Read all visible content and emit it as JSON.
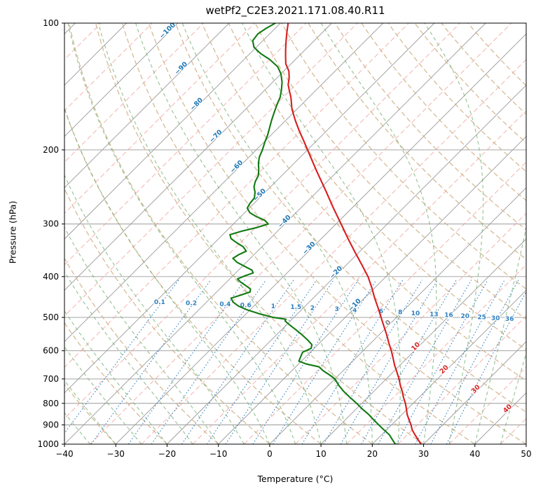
{
  "chart_data": {
    "type": "line",
    "subtype": "skewT-logP",
    "title": "wetPf2_C2E3.2021.171.08.40.R11",
    "xlabel": "Temperature (°C)",
    "ylabel": "Pressure (hPa)",
    "x_range": [
      -40,
      50
    ],
    "p_range": [
      100,
      1000
    ],
    "x_ticks": [
      -40,
      -30,
      -20,
      -10,
      0,
      10,
      20,
      30,
      40,
      50
    ],
    "y_ticks": [
      100,
      200,
      300,
      400,
      500,
      600,
      700,
      800,
      900,
      1000
    ],
    "skew_deg_per_decade": 82.1,
    "grid": true,
    "colors": {
      "temperature": "#d81e1e",
      "dewpoint": "#127a12",
      "isotherm": "#9a9a9a",
      "isotherm_minor": "#ee9a93",
      "dry_adiabat": "#d2b48c",
      "moist_adiabat": "#6fae6f",
      "mixing_line": "#2f7fbf",
      "label_negative": "#1f77b4",
      "label_zero": "#808080",
      "label_positive": "#d62728",
      "frame": "#000000"
    },
    "isotherm_step": 10,
    "isotherm_minor_step": 10,
    "dry_adiabats": {
      "start": -30,
      "end": 170,
      "step": 10
    },
    "moist_adiabats": {
      "start": -40,
      "end": 45,
      "step": 5
    },
    "mixing_ratios": [
      0.1,
      0.2,
      0.4,
      0.6,
      1,
      1.5,
      2,
      3,
      4,
      6,
      8,
      10,
      13,
      16,
      20,
      25,
      30,
      36
    ],
    "mixing_label_pressure_start": 468,
    "mixing_label_pressure_step": 2.7,
    "isotherm_labels": [
      {
        "t": -100,
        "p": 105
      },
      {
        "t": -90,
        "p": 129
      },
      {
        "t": -80,
        "p": 157
      },
      {
        "t": -70,
        "p": 187
      },
      {
        "t": -60,
        "p": 221
      },
      {
        "t": -50,
        "p": 258
      },
      {
        "t": -40,
        "p": 298
      },
      {
        "t": -30,
        "p": 345
      },
      {
        "t": -20,
        "p": 394
      },
      {
        "t": -10,
        "p": 471
      },
      {
        "t": 0,
        "p": 519
      },
      {
        "t": 10,
        "p": 591
      },
      {
        "t": 20,
        "p": 670
      },
      {
        "t": 30,
        "p": 746
      },
      {
        "t": 40,
        "p": 830
      }
    ],
    "series": [
      {
        "name": "temperature",
        "units": [
          "hPa",
          "degC"
        ],
        "points": [
          [
            1000,
            29.5
          ],
          [
            975,
            28
          ],
          [
            950,
            26.5
          ],
          [
            925,
            25
          ],
          [
            900,
            23.8
          ],
          [
            875,
            22.4
          ],
          [
            850,
            21
          ],
          [
            825,
            19.8
          ],
          [
            800,
            18.5
          ],
          [
            775,
            17
          ],
          [
            750,
            15.6
          ],
          [
            725,
            14
          ],
          [
            700,
            12.5
          ],
          [
            675,
            10.8
          ],
          [
            650,
            9
          ],
          [
            625,
            7.3
          ],
          [
            600,
            5.5
          ],
          [
            575,
            3.5
          ],
          [
            550,
            1.5
          ],
          [
            525,
            -0.7
          ],
          [
            500,
            -3
          ],
          [
            475,
            -5.4
          ],
          [
            450,
            -8
          ],
          [
            425,
            -10.6
          ],
          [
            400,
            -13.5
          ],
          [
            375,
            -17
          ],
          [
            350,
            -20.8
          ],
          [
            325,
            -24.8
          ],
          [
            300,
            -29
          ],
          [
            275,
            -33.6
          ],
          [
            250,
            -38.5
          ],
          [
            225,
            -44
          ],
          [
            200,
            -50
          ],
          [
            190,
            -52.6
          ],
          [
            180,
            -55.4
          ],
          [
            170,
            -58.2
          ],
          [
            160,
            -61
          ],
          [
            150,
            -63.5
          ],
          [
            145,
            -65
          ],
          [
            140,
            -66.5
          ],
          [
            135,
            -67.6
          ],
          [
            130,
            -69
          ],
          [
            125,
            -71
          ],
          [
            120,
            -72.5
          ],
          [
            115,
            -74
          ],
          [
            110,
            -75.5
          ],
          [
            105,
            -77
          ],
          [
            100,
            -78.5
          ]
        ]
      },
      {
        "name": "dewpoint",
        "units": [
          "hPa",
          "degC"
        ],
        "points": [
          [
            1000,
            24.5
          ],
          [
            975,
            23
          ],
          [
            950,
            21.5
          ],
          [
            925,
            19.5
          ],
          [
            900,
            17.5
          ],
          [
            875,
            15.5
          ],
          [
            850,
            13.5
          ],
          [
            825,
            11.2
          ],
          [
            800,
            9
          ],
          [
            775,
            6.6
          ],
          [
            750,
            4.2
          ],
          [
            725,
            2
          ],
          [
            700,
            0
          ],
          [
            685,
            -1.8
          ],
          [
            670,
            -3.8
          ],
          [
            655,
            -5.5
          ],
          [
            645,
            -8.5
          ],
          [
            635,
            -10.5
          ],
          [
            620,
            -11
          ],
          [
            605,
            -11.5
          ],
          [
            592,
            -10.6
          ],
          [
            580,
            -11.2
          ],
          [
            565,
            -13
          ],
          [
            550,
            -15
          ],
          [
            535,
            -17.2
          ],
          [
            520,
            -19.5
          ],
          [
            510,
            -21
          ],
          [
            505,
            -21.2
          ],
          [
            500,
            -24
          ],
          [
            490,
            -27.5
          ],
          [
            480,
            -30.5
          ],
          [
            470,
            -33
          ],
          [
            460,
            -34.8
          ],
          [
            450,
            -36
          ],
          [
            442,
            -34.6
          ],
          [
            435,
            -33.5
          ],
          [
            428,
            -34
          ],
          [
            420,
            -35.6
          ],
          [
            412,
            -37.3
          ],
          [
            405,
            -38.5
          ],
          [
            398,
            -37.6
          ],
          [
            392,
            -36.6
          ],
          [
            386,
            -37.4
          ],
          [
            378,
            -39.6
          ],
          [
            370,
            -41.8
          ],
          [
            362,
            -43.4
          ],
          [
            355,
            -43
          ],
          [
            348,
            -42.2
          ],
          [
            340,
            -43.6
          ],
          [
            332,
            -45.8
          ],
          [
            325,
            -47.6
          ],
          [
            318,
            -48.6
          ],
          [
            312,
            -47
          ],
          [
            306,
            -44.8
          ],
          [
            300,
            -43.2
          ],
          [
            294,
            -44.6
          ],
          [
            288,
            -47
          ],
          [
            282,
            -49
          ],
          [
            275,
            -50.4
          ],
          [
            268,
            -50.8
          ],
          [
            260,
            -51
          ],
          [
            252,
            -52
          ],
          [
            245,
            -53.2
          ],
          [
            238,
            -54
          ],
          [
            230,
            -54.6
          ],
          [
            222,
            -55.8
          ],
          [
            215,
            -57
          ],
          [
            208,
            -58
          ],
          [
            200,
            -58.8
          ],
          [
            192,
            -59.8
          ],
          [
            185,
            -60.6
          ],
          [
            178,
            -61.6
          ],
          [
            170,
            -62.8
          ],
          [
            163,
            -63.8
          ],
          [
            156,
            -64.8
          ],
          [
            150,
            -65.6
          ],
          [
            144,
            -66.8
          ],
          [
            138,
            -68.2
          ],
          [
            132,
            -70
          ],
          [
            127,
            -72
          ],
          [
            122,
            -75
          ],
          [
            118,
            -78
          ],
          [
            114,
            -80.5
          ],
          [
            110,
            -82
          ],
          [
            106,
            -82.3
          ],
          [
            103,
            -81.8
          ],
          [
            100,
            -81
          ]
        ]
      }
    ]
  }
}
